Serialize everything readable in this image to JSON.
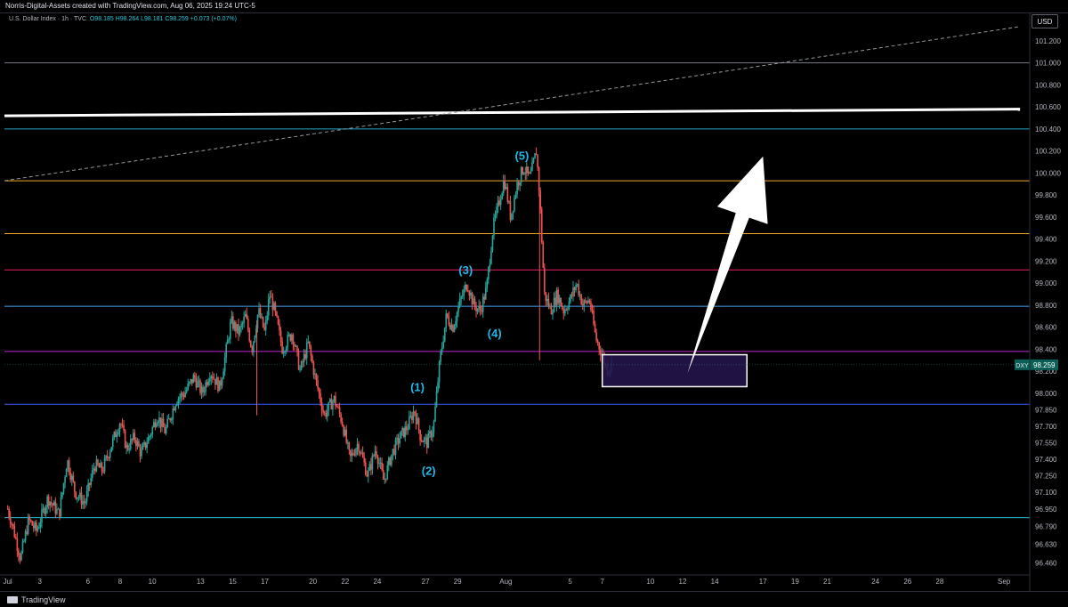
{
  "header": {
    "attribution": "Norris-Digital-Assets created with TradingView.com, Aug 06, 2025 19:24 UTC-5",
    "symbol_line": "U.S. Dollar Index · 1h · TVC",
    "ohlc": "O98.185 H98.264 L98.181 C98.259 +0.073 (+0.07%)",
    "currency": "USD"
  },
  "footer": {
    "brand": "TradingView"
  },
  "colors": {
    "background": "#000000",
    "bullish": "#26a69a",
    "bearish": "#ef5350",
    "wave_label": "#22b8e8",
    "target_zone_fill": "#24144a",
    "arrow": "#ffffff"
  },
  "chart_data": {
    "type": "candlestick",
    "symbol": "DXY",
    "timeframe": "1h",
    "ylim": [
      96.35,
      101.45
    ],
    "y_ticks": [
      "101.200",
      "101.000",
      "100.800",
      "100.600",
      "100.400",
      "100.200",
      "100.000",
      "99.800",
      "99.600",
      "99.400",
      "99.200",
      "99.000",
      "98.800",
      "98.600",
      "98.400",
      "98.200",
      "98.000",
      "97.850",
      "97.700",
      "97.550",
      "97.400",
      "97.250",
      "97.100",
      "96.950",
      "96.790",
      "96.630",
      "96.460"
    ],
    "x_ticks": [
      {
        "label": "Jul",
        "t": 0
      },
      {
        "label": "3",
        "t": 2
      },
      {
        "label": "6",
        "t": 5
      },
      {
        "label": "8",
        "t": 7
      },
      {
        "label": "10",
        "t": 9
      },
      {
        "label": "13",
        "t": 12
      },
      {
        "label": "15",
        "t": 14
      },
      {
        "label": "17",
        "t": 16
      },
      {
        "label": "20",
        "t": 19
      },
      {
        "label": "22",
        "t": 21
      },
      {
        "label": "24",
        "t": 23
      },
      {
        "label": "27",
        "t": 26
      },
      {
        "label": "29",
        "t": 28
      },
      {
        "label": "Aug",
        "t": 31
      },
      {
        "label": "5",
        "t": 35
      },
      {
        "label": "7",
        "t": 37
      },
      {
        "label": "10",
        "t": 40
      },
      {
        "label": "12",
        "t": 42
      },
      {
        "label": "14",
        "t": 44
      },
      {
        "label": "17",
        "t": 47
      },
      {
        "label": "19",
        "t": 49
      },
      {
        "label": "21",
        "t": 51
      },
      {
        "label": "24",
        "t": 54
      },
      {
        "label": "26",
        "t": 56
      },
      {
        "label": "28",
        "t": 58
      },
      {
        "label": "Sep",
        "t": 62
      }
    ],
    "price_path": [
      [
        0,
        96.95
      ],
      [
        0.3,
        96.8
      ],
      [
        0.8,
        96.5
      ],
      [
        1.3,
        96.85
      ],
      [
        1.8,
        96.75
      ],
      [
        2.5,
        97.05
      ],
      [
        3.2,
        96.9
      ],
      [
        3.7,
        97.4
      ],
      [
        4.2,
        97.1
      ],
      [
        4.8,
        97.0
      ],
      [
        5.4,
        97.35
      ],
      [
        5.9,
        97.3
      ],
      [
        6.5,
        97.55
      ],
      [
        7.0,
        97.75
      ],
      [
        7.4,
        97.5
      ],
      [
        7.9,
        97.6
      ],
      [
        8.3,
        97.45
      ],
      [
        8.8,
        97.6
      ],
      [
        9.3,
        97.8
      ],
      [
        9.8,
        97.65
      ],
      [
        10.5,
        97.95
      ],
      [
        11.0,
        98.0
      ],
      [
        11.6,
        98.15
      ],
      [
        12.1,
        98.0
      ],
      [
        12.6,
        98.2
      ],
      [
        13.2,
        98.05
      ],
      [
        13.9,
        98.65
      ],
      [
        14.4,
        98.55
      ],
      [
        14.8,
        98.7
      ],
      [
        15.2,
        98.4
      ],
      [
        15.6,
        98.75
      ],
      [
        16.0,
        98.55
      ],
      [
        16.3,
        98.9
      ],
      [
        16.6,
        98.75
      ],
      [
        17.1,
        98.4
      ],
      [
        17.7,
        98.55
      ],
      [
        18.2,
        98.2
      ],
      [
        18.7,
        98.45
      ],
      [
        19.2,
        98.1
      ],
      [
        19.7,
        97.8
      ],
      [
        20.3,
        97.95
      ],
      [
        20.8,
        97.75
      ],
      [
        21.3,
        97.4
      ],
      [
        21.8,
        97.55
      ],
      [
        22.4,
        97.25
      ],
      [
        22.9,
        97.5
      ],
      [
        23.4,
        97.2
      ],
      [
        23.9,
        97.45
      ],
      [
        24.4,
        97.6
      ],
      [
        24.9,
        97.7
      ],
      [
        25.3,
        97.85
      ],
      [
        25.7,
        97.6
      ],
      [
        26.1,
        97.55
      ],
      [
        26.5,
        97.7
      ],
      [
        26.9,
        98.3
      ],
      [
        27.3,
        98.7
      ],
      [
        27.7,
        98.6
      ],
      [
        28.2,
        98.85
      ],
      [
        28.6,
        99.0
      ],
      [
        29.0,
        98.8
      ],
      [
        29.4,
        98.75
      ],
      [
        29.8,
        98.95
      ],
      [
        30.2,
        99.5
      ],
      [
        30.6,
        99.75
      ],
      [
        30.9,
        99.95
      ],
      [
        31.3,
        99.6
      ],
      [
        31.7,
        99.9
      ],
      [
        32.1,
        100.05
      ],
      [
        32.5,
        99.95
      ],
      [
        32.9,
        100.2
      ],
      [
        33.1,
        99.8
      ],
      [
        33.4,
        98.9
      ],
      [
        33.8,
        98.75
      ],
      [
        34.2,
        98.9
      ],
      [
        34.6,
        98.75
      ],
      [
        35.0,
        98.85
      ],
      [
        35.4,
        99.0
      ],
      [
        35.8,
        98.8
      ],
      [
        36.2,
        98.85
      ],
      [
        36.6,
        98.5
      ],
      [
        37.0,
        98.35
      ],
      [
        37.3,
        98.22
      ],
      [
        37.6,
        98.26
      ]
    ],
    "wick_spikes": [
      {
        "t": 15.5,
        "low": 97.8
      },
      {
        "t": 33.1,
        "low": 98.3
      }
    ],
    "horizontal_levels": [
      {
        "price": 101.0,
        "color": "#787b86"
      },
      {
        "price": 100.4,
        "color": "#26a6c8"
      },
      {
        "price": 99.93,
        "color": "#f5a623"
      },
      {
        "price": 99.45,
        "color": "#f5a623"
      },
      {
        "price": 99.12,
        "color": "#e91e63"
      },
      {
        "price": 98.79,
        "color": "#42a5f5"
      },
      {
        "price": 98.38,
        "color": "#c026d3"
      },
      {
        "price": 97.9,
        "color": "#3d5afe"
      },
      {
        "price": 96.87,
        "color": "#26c6da"
      }
    ],
    "trendlines": [
      {
        "name": "resistance",
        "from": {
          "t": -0.2,
          "price": 100.52
        },
        "to": {
          "t": 63.0,
          "price": 100.58
        },
        "color": "#ffffff",
        "style": "solid"
      },
      {
        "name": "channel",
        "from": {
          "t": -0.2,
          "price": 99.93
        },
        "to": {
          "t": 63.0,
          "price": 101.33
        },
        "color": "#9598a1",
        "style": "dashed"
      }
    ],
    "target_zone": {
      "t_start": 37.0,
      "t_end": 46.0,
      "price_top": 98.35,
      "price_bottom": 98.06
    },
    "projection_arrow": {
      "from": {
        "t": 42.3,
        "price": 98.18
      },
      "to": {
        "t": 47.0,
        "price": 100.15
      }
    },
    "wave_labels": [
      {
        "label": "(1)",
        "t": 25.5,
        "price": 98.02
      },
      {
        "label": "(2)",
        "t": 26.2,
        "price": 97.26
      },
      {
        "label": "(3)",
        "t": 28.5,
        "price": 99.08
      },
      {
        "label": "(4)",
        "t": 30.3,
        "price": 98.51
      },
      {
        "label": "(5)",
        "t": 32.0,
        "price": 100.12
      }
    ],
    "current_price": {
      "label": "DXY",
      "value": "98.259",
      "price": 98.259
    }
  }
}
